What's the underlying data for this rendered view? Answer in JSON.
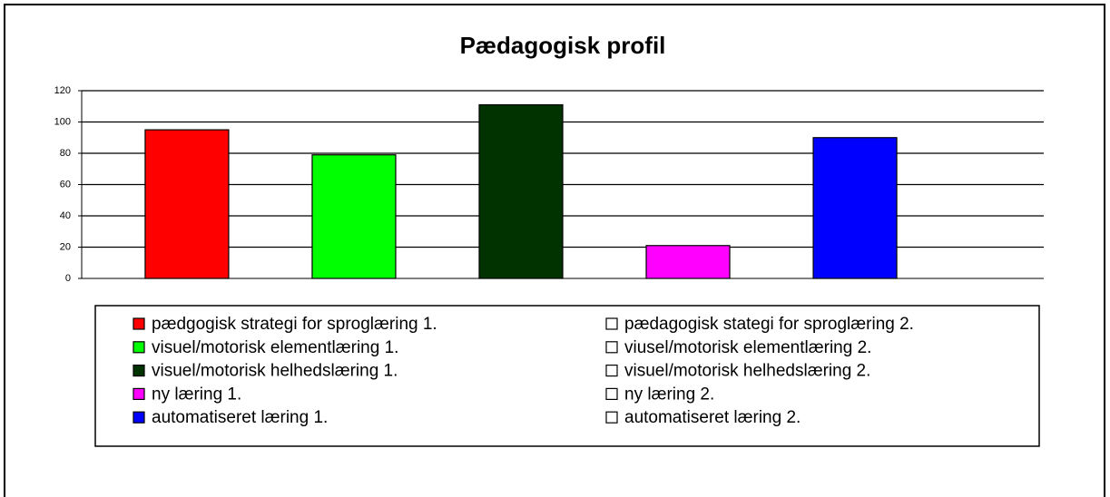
{
  "chart_data": {
    "type": "bar",
    "title": "Pædagogisk profil",
    "categories": [
      null
    ],
    "series": [
      {
        "name": "pædgogisk strategi for sproglæring 1.",
        "color": "#ff0000",
        "values": [
          95
        ]
      },
      {
        "name": "pædagogisk stategi for sproglæring 2.",
        "color": "#ffffff",
        "values": [
          null
        ]
      },
      {
        "name": "visuel/motorisk elementlæring 1.",
        "color": "#00ff00",
        "values": [
          79
        ]
      },
      {
        "name": "viusel/motorisk elementlæring 2.",
        "color": "#ffffff",
        "values": [
          null
        ]
      },
      {
        "name": "visuel/motorisk helhedslæring 1.",
        "color": "#003300",
        "values": [
          111
        ]
      },
      {
        "name": "visuel/motorisk helhedslæring 2.",
        "color": "#ffffff",
        "values": [
          null
        ]
      },
      {
        "name": "ny læring 1.",
        "color": "#ff00ff",
        "values": [
          21
        ]
      },
      {
        "name": "ny læring 2.",
        "color": "#ffffff",
        "values": [
          null
        ]
      },
      {
        "name": "automatiseret læring 1.",
        "color": "#0000ff",
        "values": [
          90
        ]
      },
      {
        "name": "automatiseret læring 2.",
        "color": "#ffffff",
        "values": [
          null
        ]
      }
    ],
    "ylim": [
      0,
      120
    ],
    "yticks": [
      0,
      20,
      40,
      60,
      80,
      100,
      120
    ],
    "grid": true
  }
}
